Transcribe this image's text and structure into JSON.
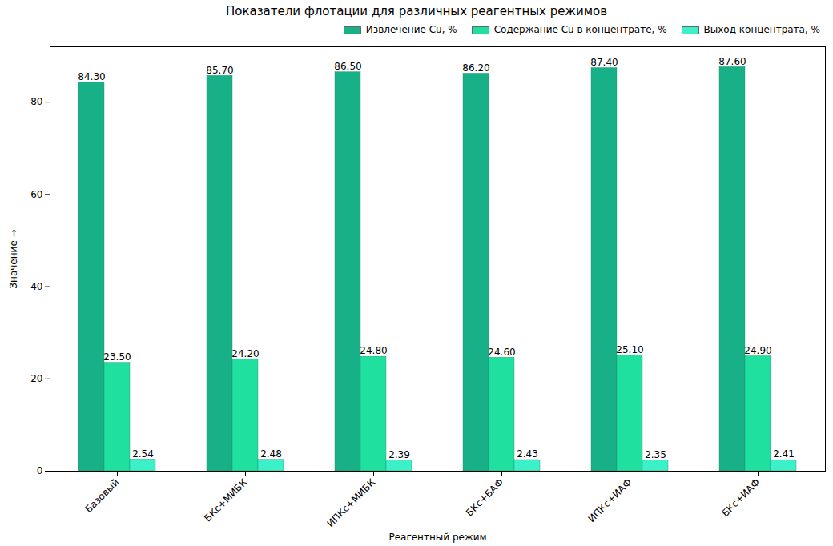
{
  "chart_data": {
    "type": "bar",
    "title": "Показатели флотации для различных реагентных режимов",
    "x_label": "Реагентный режим",
    "y_label": "Значение",
    "categories": [
      "Базовый",
      "БКс+МИБК",
      "ИПКс+МИБК",
      "БКс+БАФ",
      "ИПКс+ИАФ",
      "БКс+ИАФ"
    ],
    "series": [
      {
        "name": "Извлечение Cu, %",
        "color": "#18b087",
        "values": [
          84.3,
          85.7,
          86.5,
          86.2,
          87.4,
          87.6
        ],
        "value_labels": [
          "84.30",
          "85.70",
          "86.50",
          "86.20",
          "87.40",
          "87.60"
        ]
      },
      {
        "name": "Содержание Cu в концентрате, %",
        "color": "#20e0a0",
        "values": [
          23.5,
          24.2,
          24.8,
          24.6,
          25.1,
          24.9
        ],
        "value_labels": [
          "23.50",
          "24.20",
          "24.80",
          "24.60",
          "25.10",
          "24.90"
        ]
      },
      {
        "name": "Выход концентрата, %",
        "color": "#3cf0c8",
        "values": [
          2.54,
          2.48,
          2.39,
          2.43,
          2.35,
          2.41
        ],
        "value_labels": [
          "2.54",
          "2.48",
          "2.39",
          "2.43",
          "2.35",
          "2.41"
        ]
      }
    ],
    "ylim": [
      0,
      92
    ],
    "yticks": [
      0,
      20,
      40,
      60,
      80
    ],
    "grid": false,
    "legend": "upper right",
    "data_labels": true
  }
}
